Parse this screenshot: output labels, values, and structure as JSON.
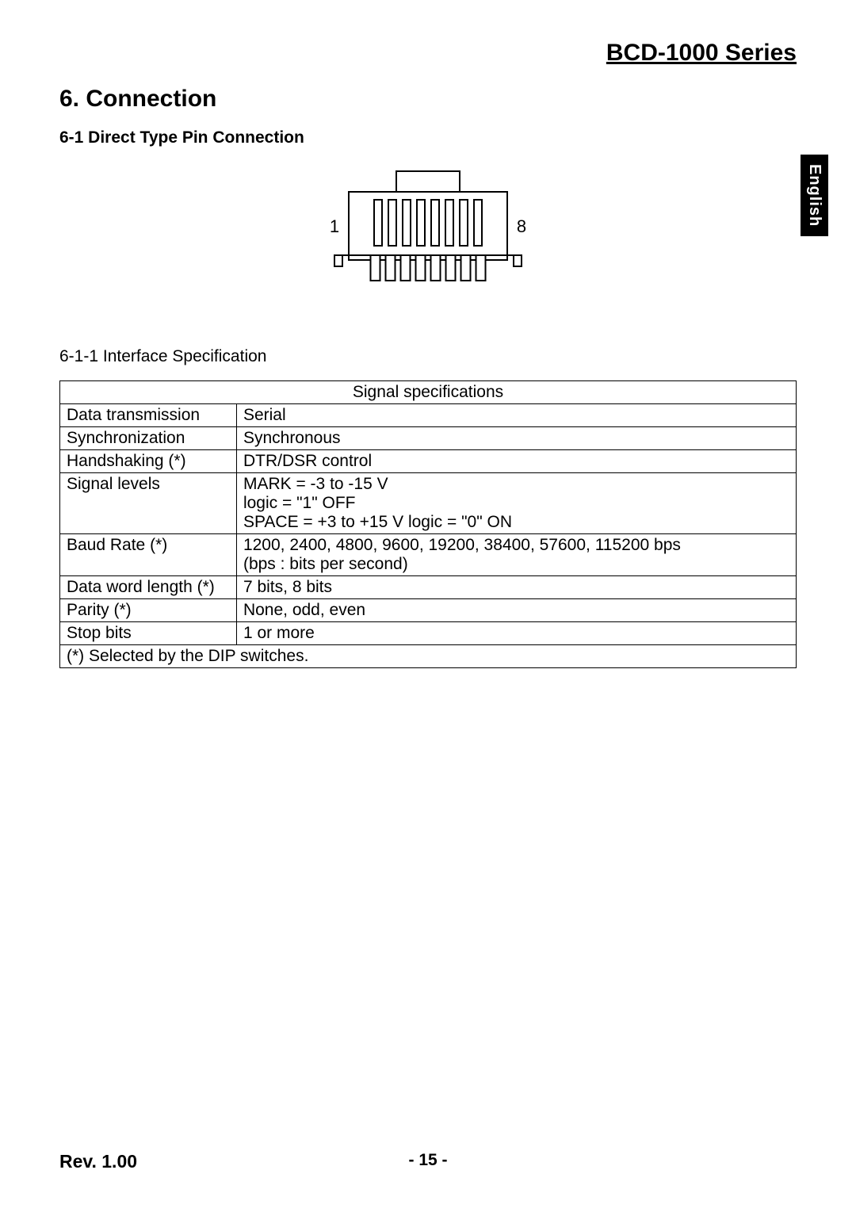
{
  "header": {
    "series": "BCD-1000 Series",
    "language_tab": "English"
  },
  "section": {
    "title": "6. Connection",
    "subsection_title": "6-1 Direct Type Pin Connection",
    "subsubsection_title": "6-1-1 Interface Specification"
  },
  "connector": {
    "pin_left_label": "1",
    "pin_right_label": "8",
    "pin_count": 8,
    "body_width": 200,
    "body_height": 86,
    "tab_width": 80,
    "tab_height": 28,
    "pin_width": 10,
    "pin_gap": 8,
    "stroke": "#000000",
    "fill": "#ffffff"
  },
  "table": {
    "header": "Signal specifications",
    "rows": [
      {
        "label": "Data transmission",
        "value": "Serial"
      },
      {
        "label": "Synchronization",
        "value": "Synchronous"
      },
      {
        "label": "Handshaking (*)",
        "value": "DTR/DSR control"
      },
      {
        "label": "Signal levels",
        "value": "MARK = -3 to -15 V\nlogic = \"1\" OFF\nSPACE = +3 to +15 V     logic = \"0\" ON"
      },
      {
        "label": "Baud Rate (*)",
        "value": "1200, 2400, 4800, 9600, 19200, 38400, 57600, 115200 bps\n(bps : bits per second)"
      },
      {
        "label": "Data word length (*)",
        "value": "7 bits, 8 bits"
      },
      {
        "label": "Parity (*)",
        "value": "None, odd, even"
      },
      {
        "label": "Stop bits",
        "value": "1 or more"
      }
    ],
    "footnote": "(*) Selected by the DIP switches."
  },
  "footer": {
    "revision": "Rev. 1.00",
    "page": "- 15 -"
  }
}
